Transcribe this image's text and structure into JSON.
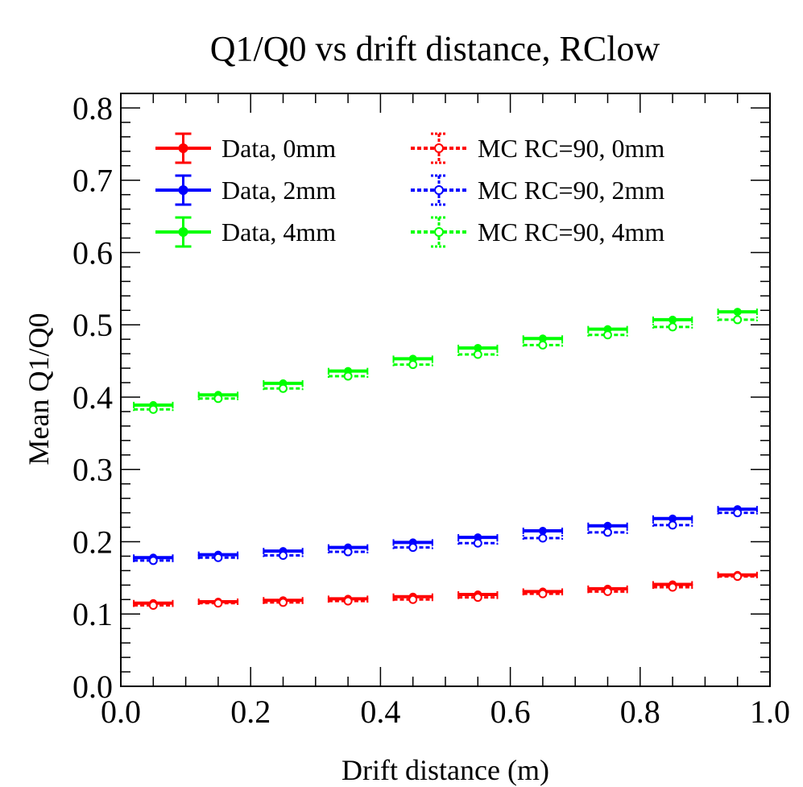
{
  "chart_data": {
    "type": "scatter",
    "title": "Q1/Q0 vs drift distance, RClow",
    "xlabel": "Drift distance (m)",
    "ylabel": "Mean Q1/Q0",
    "xlim": [
      0.0,
      1.0
    ],
    "ylim": [
      0.0,
      0.82
    ],
    "xticks": [
      "0.0",
      "0.2",
      "0.4",
      "0.6",
      "0.8",
      "1.0"
    ],
    "yticks": [
      "0.0",
      "0.1",
      "0.2",
      "0.3",
      "0.4",
      "0.5",
      "0.6",
      "0.7",
      "0.8"
    ],
    "grid": false,
    "legend_position": "top",
    "x": [
      0.05,
      0.15,
      0.25,
      0.35,
      0.45,
      0.55,
      0.65,
      0.75,
      0.85,
      0.95
    ],
    "x_bin_halfwidth": 0.03,
    "series": [
      {
        "name": "Data, 0mm",
        "style": "data",
        "color": "#ff0000",
        "values": [
          0.115,
          0.117,
          0.119,
          0.121,
          0.124,
          0.127,
          0.131,
          0.135,
          0.141,
          0.154
        ]
      },
      {
        "name": "Data, 2mm",
        "style": "data",
        "color": "#0000ff",
        "values": [
          0.178,
          0.182,
          0.187,
          0.192,
          0.199,
          0.206,
          0.215,
          0.222,
          0.232,
          0.245
        ]
      },
      {
        "name": "Data, 4mm",
        "style": "data",
        "color": "#00ff00",
        "values": [
          0.389,
          0.403,
          0.419,
          0.436,
          0.453,
          0.468,
          0.481,
          0.494,
          0.507,
          0.518
        ]
      },
      {
        "name": "MC RC=90, 0mm",
        "style": "mc",
        "color": "#ff0000",
        "values": [
          0.112,
          0.115,
          0.116,
          0.118,
          0.12,
          0.123,
          0.128,
          0.131,
          0.137,
          0.152
        ]
      },
      {
        "name": "MC RC=90, 2mm",
        "style": "mc",
        "color": "#0000ff",
        "values": [
          0.174,
          0.178,
          0.181,
          0.186,
          0.192,
          0.198,
          0.205,
          0.213,
          0.223,
          0.24
        ]
      },
      {
        "name": "MC RC=90, 4mm",
        "style": "mc",
        "color": "#00ff00",
        "values": [
          0.383,
          0.398,
          0.412,
          0.429,
          0.445,
          0.459,
          0.472,
          0.486,
          0.497,
          0.507
        ]
      }
    ]
  }
}
